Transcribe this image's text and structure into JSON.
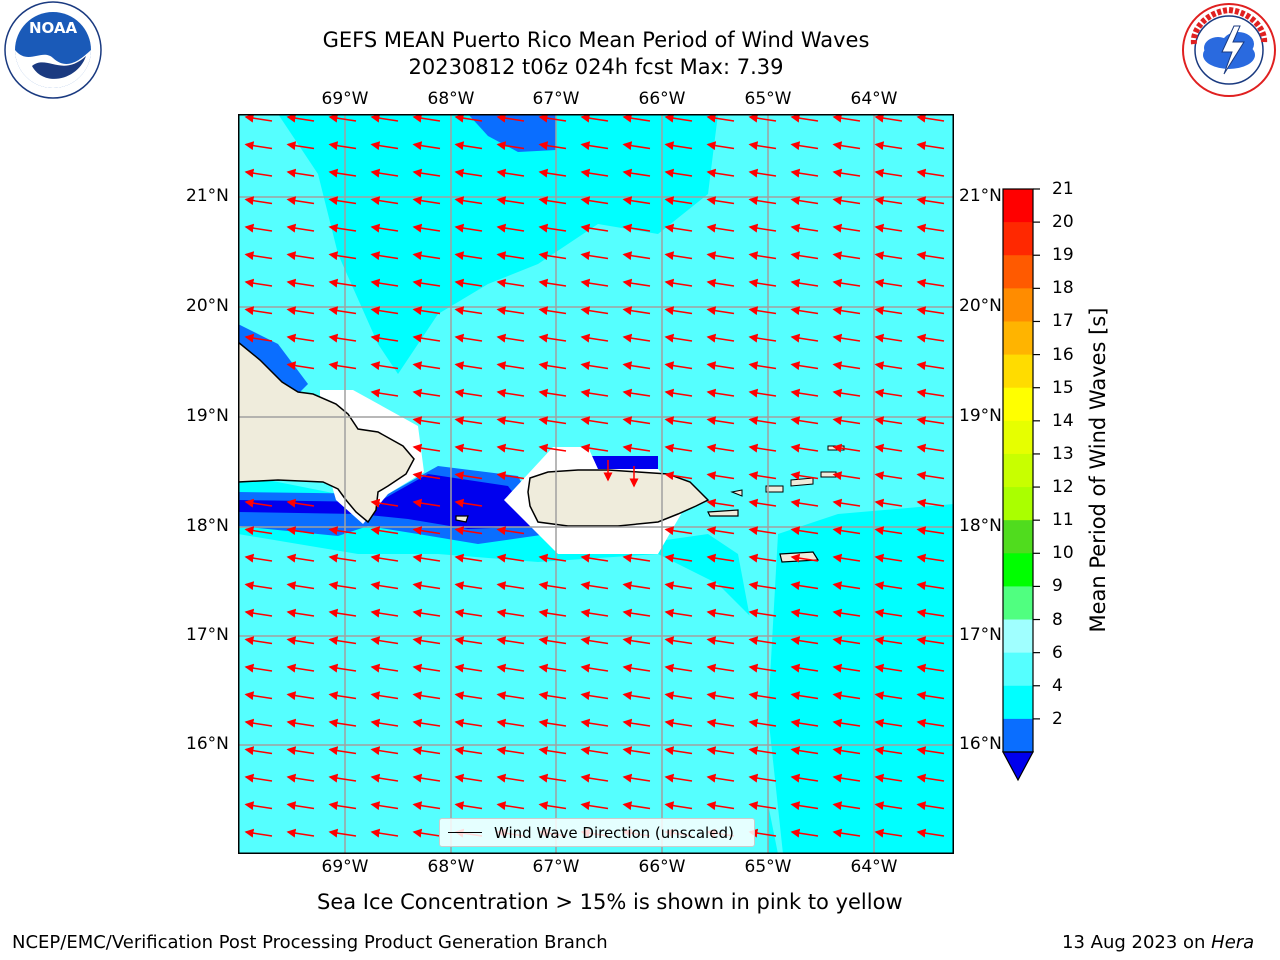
{
  "title": {
    "line1": "GEFS MEAN Puerto Rico Mean Period of Wind Waves",
    "line2": "20230812 t06z 024h fcst   Max: 7.39"
  },
  "logos": {
    "noaa_text": "NOAA",
    "noaa_ring_top": "NATIONAL OCEANIC AND ATMOSPHERIC ADMINISTRATION",
    "noaa_ring_bottom": "U.S. DEPARTMENT OF COMMERCE",
    "nws_ring": "NATIONAL WEATHER SERVICE"
  },
  "map": {
    "lon_labels": [
      "69°W",
      "68°W",
      "67°W",
      "66°W",
      "65°W",
      "64°W"
    ],
    "lat_labels": [
      "21°N",
      "20°N",
      "19°N",
      "18°N",
      "17°N",
      "16°N"
    ],
    "legend_label": "Wind Wave Direction (unscaled)",
    "colors": {
      "ocean_main": "#00ffff",
      "ocean_light": "#55ffff",
      "deep_blue": "#0000ee",
      "mid_blue": "#0a6eff",
      "land": "#efecdc",
      "arrow": "#ff0000",
      "grid": "#a0a0a0"
    }
  },
  "colorbar": {
    "title": "Mean Period of Wind Waves [s]",
    "ticks": [
      "21",
      "20",
      "19",
      "18",
      "17",
      "16",
      "15",
      "14",
      "13",
      "12",
      "11",
      "10",
      "9",
      "8",
      "6",
      "4",
      "2"
    ],
    "colors": [
      "#ff0000",
      "#ff2800",
      "#ff5a00",
      "#ff8c00",
      "#ffb400",
      "#ffdc00",
      "#ffff00",
      "#e6ff00",
      "#c8ff00",
      "#aaff00",
      "#50dc1e",
      "#00ff00",
      "#50ff80",
      "#a0ffff",
      "#55ffff",
      "#00ffff",
      "#0a6eff"
    ],
    "extend_color": "#0000ee"
  },
  "caption": "Sea Ice Concentration > 15% is shown in pink to yellow",
  "footer": {
    "left": "NCEP/EMC/Verification Post Processing Product Generation Branch",
    "right_prefix": "13 Aug 2023 on ",
    "right_italic": "Hera"
  }
}
